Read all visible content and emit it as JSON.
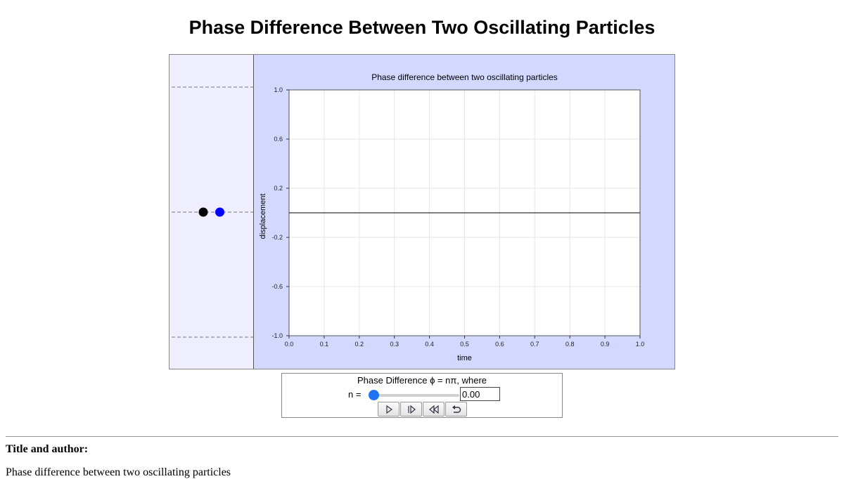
{
  "page": {
    "title": "Phase Difference Between Two Oscillating Particles"
  },
  "simulation": {
    "particles": [
      {
        "name": "particle-1",
        "color": "#000000"
      },
      {
        "name": "particle-2",
        "color": "#0000ff"
      }
    ],
    "colors": {
      "panel_background": "#eeeeff",
      "plot_background": "#d3d8ff",
      "accent": "#1e73f0"
    }
  },
  "chart_data": {
    "type": "line",
    "title": "Phase difference between two oscillating particles",
    "xlabel": "time",
    "ylabel": "displacement",
    "xlim": [
      0.0,
      1.0
    ],
    "ylim": [
      -1.0,
      1.0
    ],
    "x_ticks": [
      "0.0",
      "0.1",
      "0.2",
      "0.3",
      "0.4",
      "0.5",
      "0.6",
      "0.7",
      "0.8",
      "0.9",
      "1.0"
    ],
    "y_ticks": [
      "1.0",
      "0.6",
      "0.2",
      "-0.2",
      "-0.6",
      "-1.0"
    ],
    "grid": true,
    "series": [
      {
        "x": [
          0.0,
          1.0
        ],
        "values": [
          0.0,
          0.0
        ]
      }
    ]
  },
  "controls": {
    "phase_label": "Phase Difference ϕ = nπ, where",
    "n_label": "n =",
    "n_value": "0.00",
    "n_fraction": 0.0,
    "buttons": [
      {
        "name": "play-button",
        "icon": "play-icon"
      },
      {
        "name": "step-button",
        "icon": "step-icon"
      },
      {
        "name": "rewind-button",
        "icon": "rewind-icon"
      },
      {
        "name": "reset-button",
        "icon": "reset-icon"
      }
    ]
  },
  "info": {
    "heading": "Title and author:",
    "text": "Phase difference between two oscillating particles"
  }
}
